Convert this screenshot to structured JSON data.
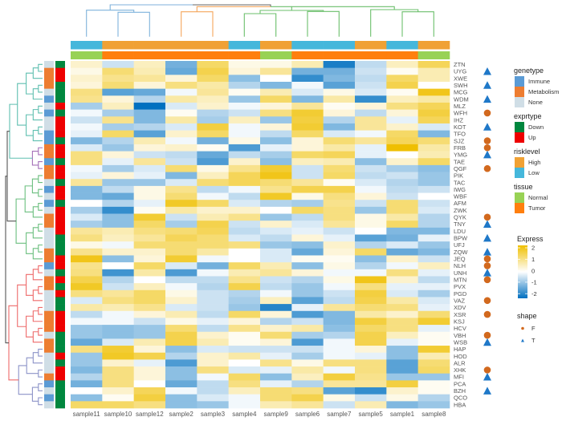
{
  "chart_data": {
    "type": "heatmap",
    "columns": [
      "sample11",
      "sample10",
      "sample12",
      "sample2",
      "sample3",
      "sample4",
      "sample9",
      "sample6",
      "sample7",
      "sample5",
      "sample1",
      "sample8"
    ],
    "column_annotations": {
      "risklevel": [
        "Low",
        "High",
        "High",
        "High",
        "High",
        "Low",
        "High",
        "Low",
        "Low",
        "High",
        "Low",
        "High"
      ],
      "tissue": [
        "Normal",
        "Tumor",
        "Tumor",
        "Tumor",
        "Tumor",
        "Tumor",
        "Normal",
        "Tumor",
        "Tumor",
        "Tumor",
        "Tumor",
        "Normal"
      ]
    },
    "rows": [
      {
        "name": "ZTN",
        "genetype": "None",
        "exprtype": "Down",
        "shape": null
      },
      {
        "name": "UYG",
        "genetype": "Metabolism",
        "exprtype": "Up",
        "shape": "T"
      },
      {
        "name": "XWE",
        "genetype": "Metabolism",
        "exprtype": "Up",
        "shape": null
      },
      {
        "name": "SWH",
        "genetype": "Metabolism",
        "exprtype": "Down",
        "shape": "T"
      },
      {
        "name": "MCG",
        "genetype": "None",
        "exprtype": "Down",
        "shape": null
      },
      {
        "name": "WDM",
        "genetype": "Immune",
        "exprtype": "Down",
        "shape": "T"
      },
      {
        "name": "MLZ",
        "genetype": "None",
        "exprtype": "Up",
        "shape": null
      },
      {
        "name": "WFH",
        "genetype": "Immune",
        "exprtype": "Down",
        "shape": "F"
      },
      {
        "name": "IHZ",
        "genetype": "None",
        "exprtype": "Up",
        "shape": null
      },
      {
        "name": "KOT",
        "genetype": "None",
        "exprtype": "Up",
        "shape": "T"
      },
      {
        "name": "TFO",
        "genetype": "Immune",
        "exprtype": "Up",
        "shape": null
      },
      {
        "name": "SJZ",
        "genetype": "Immune",
        "exprtype": "Down",
        "shape": "F"
      },
      {
        "name": "FRB",
        "genetype": "Metabolism",
        "exprtype": "Up",
        "shape": "F"
      },
      {
        "name": "YMG",
        "genetype": "Metabolism",
        "exprtype": "Up",
        "shape": "T"
      },
      {
        "name": "TAE",
        "genetype": "Immune",
        "exprtype": "Down",
        "shape": null
      },
      {
        "name": "QGF",
        "genetype": "Metabolism",
        "exprtype": "Up",
        "shape": "F"
      },
      {
        "name": "PIK",
        "genetype": "Metabolism",
        "exprtype": "Up",
        "shape": null
      },
      {
        "name": "TAC",
        "genetype": "None",
        "exprtype": "Down",
        "shape": null
      },
      {
        "name": "IWG",
        "genetype": "Immune",
        "exprtype": "Up",
        "shape": null
      },
      {
        "name": "WBF",
        "genetype": "None",
        "exprtype": "Up",
        "shape": null
      },
      {
        "name": "AFM",
        "genetype": "Immune",
        "exprtype": "Down",
        "shape": null
      },
      {
        "name": "ZWK",
        "genetype": "None",
        "exprtype": "Up",
        "shape": null
      },
      {
        "name": "QYK",
        "genetype": "Metabolism",
        "exprtype": "Up",
        "shape": "F"
      },
      {
        "name": "TNY",
        "genetype": "Metabolism",
        "exprtype": "Up",
        "shape": "T"
      },
      {
        "name": "LDU",
        "genetype": "None",
        "exprtype": "Up",
        "shape": null
      },
      {
        "name": "BPW",
        "genetype": "None",
        "exprtype": "Down",
        "shape": "T"
      },
      {
        "name": "UFJ",
        "genetype": "None",
        "exprtype": "Down",
        "shape": null
      },
      {
        "name": "ZQW",
        "genetype": "Metabolism",
        "exprtype": "Down",
        "shape": "T"
      },
      {
        "name": "JEQ",
        "genetype": "Metabolism",
        "exprtype": "Up",
        "shape": "F"
      },
      {
        "name": "NLH",
        "genetype": "Immune",
        "exprtype": "Up",
        "shape": "F"
      },
      {
        "name": "UNH",
        "genetype": "None",
        "exprtype": "Down",
        "shape": "T"
      },
      {
        "name": "MTN",
        "genetype": "Metabolism",
        "exprtype": "Up",
        "shape": "F"
      },
      {
        "name": "PVX",
        "genetype": "Metabolism",
        "exprtype": "Down",
        "shape": null
      },
      {
        "name": "PGD",
        "genetype": "None",
        "exprtype": "Up",
        "shape": null
      },
      {
        "name": "VAZ",
        "genetype": "None",
        "exprtype": "Down",
        "shape": "F"
      },
      {
        "name": "XDV",
        "genetype": "None",
        "exprtype": "Down",
        "shape": null
      },
      {
        "name": "XSR",
        "genetype": "Metabolism",
        "exprtype": "Up",
        "shape": "F"
      },
      {
        "name": "KSJ",
        "genetype": "Metabolism",
        "exprtype": "Up",
        "shape": null
      },
      {
        "name": "HCV",
        "genetype": "Metabolism",
        "exprtype": "Up",
        "shape": null
      },
      {
        "name": "VBH",
        "genetype": "None",
        "exprtype": "Down",
        "shape": "F"
      },
      {
        "name": "WSB",
        "genetype": "Metabolism",
        "exprtype": "Down",
        "shape": "T"
      },
      {
        "name": "HAP",
        "genetype": "Metabolism",
        "exprtype": "Down",
        "shape": null
      },
      {
        "name": "HOD",
        "genetype": "None",
        "exprtype": "Up",
        "shape": null
      },
      {
        "name": "ALR",
        "genetype": "None",
        "exprtype": "Down",
        "shape": null
      },
      {
        "name": "XHK",
        "genetype": "None",
        "exprtype": "Up",
        "shape": "F"
      },
      {
        "name": "MFI",
        "genetype": "Metabolism",
        "exprtype": "Up",
        "shape": "T"
      },
      {
        "name": "PCA",
        "genetype": "Immune",
        "exprtype": "Down",
        "shape": null
      },
      {
        "name": "BZH",
        "genetype": "None",
        "exprtype": "Down",
        "shape": "T"
      },
      {
        "name": "QCO",
        "genetype": "Immune",
        "exprtype": "Down",
        "shape": null
      },
      {
        "name": "HBA",
        "genetype": "None",
        "exprtype": "Down",
        "shape": null
      }
    ],
    "values": [
      [
        0.4,
        -0.4,
        0.5,
        -1.1,
        1.2,
        0.2,
        0.2,
        0.6,
        -1.8,
        -0.5,
        0.5,
        1.3
      ],
      [
        0.2,
        1.1,
        0.6,
        -1.2,
        1.4,
        0.3,
        0.8,
        -1.1,
        -1.1,
        -0.4,
        0.1,
        0.6
      ],
      [
        0.4,
        0.9,
        0.8,
        0.3,
        1.2,
        -0.9,
        0,
        -1.6,
        -1.0,
        -0.5,
        1.2,
        0.6
      ],
      [
        0.3,
        1.1,
        0.3,
        1.0,
        0.7,
        -0.6,
        -1.0,
        -0.1,
        -1.3,
        -0.4,
        1.4,
        0
      ],
      [
        1.0,
        -1.3,
        -1.2,
        -0.1,
        0.8,
        0.1,
        0.6,
        -0.3,
        0.2,
        -0.3,
        0.1,
        1.8
      ],
      [
        0.9,
        0.3,
        -0.6,
        0.7,
        0.5,
        -0.8,
        1.2,
        -1.0,
        0.7,
        -1.6,
        0.5,
        0.7
      ],
      [
        -0.7,
        0.5,
        -2.2,
        -0.3,
        0.4,
        -0.1,
        0.3,
        0.8,
        0.1,
        0.3,
        1.0,
        1.3
      ],
      [
        -0.1,
        -0.7,
        -1.0,
        0.1,
        -0.6,
        -0.4,
        1.0,
        1.6,
        0.3,
        -0.5,
        0.3,
        1.5
      ],
      [
        -0.4,
        0.9,
        -1.0,
        0.7,
        -0.7,
        0.5,
        -0.8,
        1.5,
        -0.6,
        0.8,
        -0.2,
        1.3
      ],
      [
        -0.1,
        -0.7,
        -0.6,
        -0.3,
        1.5,
        -0.1,
        0.3,
        1.6,
        -1.0,
        0.8,
        0.4,
        -0.3
      ],
      [
        -0.2,
        1.2,
        -1.3,
        0.4,
        1.2,
        -0.1,
        -0.5,
        1.2,
        -0.3,
        -0.1,
        1.2,
        -1.0
      ],
      [
        -1.0,
        -0.6,
        0.6,
        -0.1,
        -1.1,
        0.2,
        -0.9,
        0.3,
        1.1,
        0.8,
        1.3,
        1.1
      ],
      [
        -0.3,
        -0.8,
        0.3,
        0.4,
        0.1,
        -1.4,
        -0.2,
        0.3,
        0.7,
        -0.2,
        2.0,
        0.7
      ],
      [
        1.0,
        0.3,
        -0.4,
        -0.5,
        -1.2,
        -0.5,
        -0.7,
        1.2,
        1.3,
        -0.2,
        0.0,
        0.6
      ],
      [
        1.0,
        -0.2,
        0.8,
        -0.4,
        -1.4,
        0.4,
        -0.9,
        0.5,
        0.6,
        -0.9,
        0.4,
        1.2
      ],
      [
        -0.1,
        -0.7,
        -0.3,
        1.1,
        0.2,
        0.9,
        1.6,
        -0.4,
        1.1,
        -0.4,
        -0.7,
        -0.9
      ],
      [
        -0.2,
        0.3,
        -0.2,
        -1.0,
        0.5,
        1.3,
        1.8,
        -0.4,
        1.2,
        -0.5,
        -0.4,
        -0.8
      ],
      [
        0.8,
        -0.8,
        -0.8,
        -0.3,
        1.1,
        1.3,
        1.1,
        0.8,
        0.1,
        -0.3,
        -0.6,
        -0.8
      ],
      [
        -1.0,
        -0.5,
        0.2,
        0.9,
        -0.5,
        -0.1,
        0.9,
        1.4,
        1.4,
        -0.1,
        -0.5,
        -0.4
      ],
      [
        -1.0,
        -1.2,
        0.2,
        1.1,
        -0.1,
        -0.5,
        1.7,
        0.2,
        1.0,
        0.3,
        -0.4,
        0
      ],
      [
        0,
        -0.6,
        -0.2,
        1.7,
        1.2,
        -0.3,
        -0.6,
        -0.7,
        0.9,
        -0.4,
        1.1,
        -0.4
      ],
      [
        -0.7,
        -1.6,
        0.1,
        0.7,
        0.4,
        0.4,
        0,
        1.2,
        1.0,
        -0.8,
        1.1,
        -0.3
      ],
      [
        -0.3,
        -0.9,
        1.6,
        -0.4,
        0.6,
        0.9,
        -0.8,
        -0.5,
        1.0,
        0.2,
        0.7,
        -0.6
      ],
      [
        -0.7,
        -0.9,
        1.2,
        -0.7,
        1.4,
        -0.4,
        0.4,
        -0.3,
        0.8,
        0.2,
        1.2,
        -0.6
      ],
      [
        0.8,
        0.6,
        1.0,
        1.1,
        1.3,
        -0.5,
        -0.3,
        -0.2,
        -0.4,
        0,
        -1.0,
        -1.0
      ],
      [
        1.0,
        0.5,
        0.8,
        1.3,
        1.1,
        -0.3,
        -0.5,
        0.3,
        -0.2,
        -1.3,
        -1.1,
        -0.2
      ],
      [
        0.2,
        -0.1,
        1.1,
        1.1,
        1.1,
        1.0,
        -0.8,
        -0.9,
        0.4,
        -0.6,
        -0.3,
        -0.8
      ],
      [
        0.9,
        0.4,
        0.4,
        1.1,
        0.7,
        0,
        -0.3,
        -1.2,
        0.3,
        1.2,
        -1.2,
        -1.0
      ],
      [
        1.8,
        -0.9,
        0.3,
        1.6,
        -0.1,
        0,
        -0.3,
        0.1,
        0.1,
        -0.9,
        0.4,
        -0.4
      ],
      [
        0.9,
        0,
        1.2,
        -0.3,
        -1.1,
        1.2,
        0.6,
        -0.9,
        0.2,
        -0.6,
        -0.1,
        0.5
      ],
      [
        1.0,
        -1.5,
        0.7,
        -1.4,
        -0.1,
        0.6,
        0.8,
        0.3,
        -0.1,
        -0.1,
        1.0,
        -0.2
      ],
      [
        1.4,
        -0.6,
        0,
        -0.5,
        -0.5,
        0.9,
        -0.4,
        -0.6,
        0.2,
        1.8,
        0.4,
        -0.5
      ],
      [
        1.7,
        -0.4,
        0.5,
        -0.1,
        -0.6,
        1.4,
        -0.5,
        -0.8,
        -0.1,
        1.0,
        -0.2,
        -0.2
      ],
      [
        1.0,
        0.8,
        1.2,
        0.2,
        -0.4,
        -0.6,
        -0.1,
        -0.8,
        -0.4,
        1.5,
        -0.3,
        -0.7
      ],
      [
        -0.3,
        1.0,
        1.2,
        0.4,
        -0.4,
        -0.7,
        0.5,
        -1.3,
        -0.5,
        1.4,
        0.7,
        -0.3
      ],
      [
        0.7,
        0.6,
        0.9,
        -0.3,
        -0.4,
        -0.8,
        -1.7,
        -0.2,
        0.8,
        1.1,
        1.0,
        -0.2
      ],
      [
        -0.5,
        -0.1,
        0.3,
        0.6,
        -0.5,
        1.2,
        0.3,
        -1.4,
        -1.0,
        0.7,
        0.4,
        1.1
      ],
      [
        -0.1,
        -0.1,
        -0.4,
        0.2,
        -0.2,
        0.3,
        -0.6,
        -0.4,
        -1.0,
        1.5,
        1.0,
        1.6
      ],
      [
        -0.8,
        -0.9,
        -0.8,
        1.1,
        -0.5,
        0.9,
        0.4,
        0.7,
        -0.9,
        1.2,
        1.0,
        -0.2
      ],
      [
        -0.8,
        -0.9,
        -0.8,
        1.4,
        0.4,
        0.1,
        1.1,
        -0.7,
        -0.6,
        1.4,
        0.5,
        0.1
      ],
      [
        -1.2,
        -0.3,
        0.6,
        1.4,
        0.6,
        0.1,
        0.3,
        -1.4,
        -0.1,
        1.4,
        -0.2,
        0.1
      ],
      [
        1.0,
        1.6,
        0.3,
        -0.9,
        -0.3,
        -0.4,
        -0.4,
        -0.4,
        -0.1,
        0.3,
        -0.9,
        1.6
      ],
      [
        -0.8,
        1.7,
        1.4,
        -0.6,
        0.4,
        0.7,
        -0.2,
        -0.7,
        -0.1,
        -0.2,
        -0.9,
        0.6
      ],
      [
        -0.8,
        0.4,
        -0.2,
        -1.4,
        0.4,
        0,
        0.9,
        0.2,
        1.0,
        1.0,
        -1.3,
        1.1
      ],
      [
        -1.0,
        1.0,
        0.3,
        -0.9,
        1.0,
        -0.3,
        -0.2,
        0.7,
        -0.1,
        1.0,
        -1.3,
        1.2
      ],
      [
        -0.6,
        1.0,
        0.3,
        -0.9,
        -0.1,
        1.2,
        -0.9,
        0.5,
        1.5,
        0.9,
        -0.8,
        -0.8
      ],
      [
        -1.1,
        1.0,
        0,
        -1.2,
        -0.5,
        1.0,
        -0.2,
        -0.6,
        0.8,
        0.8,
        1.5,
        0.1
      ],
      [
        0,
        0.4,
        1.3,
        -0.1,
        -0.5,
        0.5,
        1.1,
        1.0,
        -1.3,
        -1.6,
        0.4,
        0.1
      ],
      [
        -0.9,
        0.1,
        1.5,
        -0.9,
        -0.3,
        -0.1,
        1.1,
        1.4,
        0.2,
        -0.4,
        0.2,
        -0.6
      ],
      [
        1.2,
        1.2,
        1.0,
        -0.9,
        -0.8,
        -0.1,
        0.6,
        0.8,
        -0.4,
        0.6,
        -1.0,
        -0.8
      ]
    ],
    "color_scale": {
      "min": -2,
      "mid": 0,
      "max": 2,
      "low_color": "#0070C0",
      "mid_color": "#FFFFFF",
      "high_color": "#EFBF00"
    }
  },
  "legend": {
    "genetype": {
      "title": "genetype",
      "items": [
        {
          "label": "Immune",
          "color": "#5B9BD5"
        },
        {
          "label": "Metabolism",
          "color": "#ED7D31"
        },
        {
          "label": "None",
          "color": "#D0DEE6"
        }
      ]
    },
    "exprtype": {
      "title": "exprtype",
      "items": [
        {
          "label": "Down",
          "color": "#00873E"
        },
        {
          "label": "Up",
          "color": "#EE0000"
        }
      ]
    },
    "risklevel": {
      "title": "risklevel",
      "items": [
        {
          "label": "High",
          "color": "#F0A134"
        },
        {
          "label": "Low",
          "color": "#45B7DB"
        }
      ]
    },
    "tissue": {
      "title": "tissue",
      "items": [
        {
          "label": "Normal",
          "color": "#98D255"
        },
        {
          "label": "Tumor",
          "color": "#FF7F0E"
        }
      ]
    },
    "express": {
      "title": "Express",
      "ticks": [
        "2",
        "1",
        "0",
        "-1",
        "-2"
      ]
    },
    "shape": {
      "title": "shape",
      "items": [
        {
          "label": "F",
          "icon": "circle-icon",
          "color": "#D2691E"
        },
        {
          "label": "T",
          "icon": "triangle-icon",
          "color": "#1F78C8"
        }
      ]
    }
  }
}
